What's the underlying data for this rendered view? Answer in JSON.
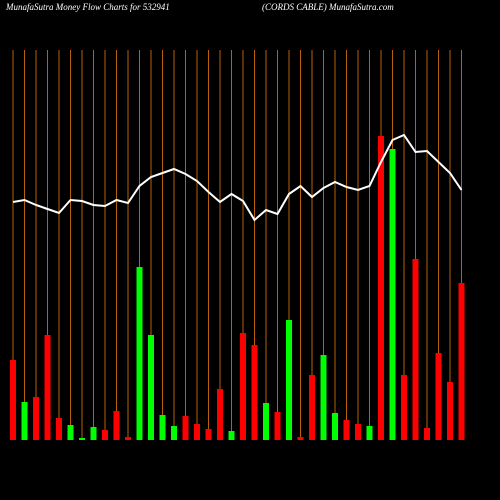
{
  "chart_data": {
    "type": "bar-line",
    "title": "MunafaSutra  Money Flow  Charts for 532941",
    "subtitle": "(CORDS CABLE) MunafaSutra.com",
    "categories": [
      null,
      null,
      null,
      null,
      null,
      null,
      null,
      null,
      null,
      null,
      null,
      null,
      null,
      null,
      null,
      null,
      null,
      null,
      null,
      null,
      null,
      null,
      null,
      null,
      null,
      null,
      null,
      null,
      null,
      null,
      null,
      null,
      null,
      null,
      null,
      null,
      null,
      null,
      null,
      null
    ],
    "values": [
      80,
      38,
      43,
      105,
      22,
      15,
      2,
      13,
      10,
      29,
      3,
      173,
      105,
      25,
      14,
      24,
      16,
      11,
      51,
      9,
      107,
      95,
      37,
      28,
      120,
      3,
      65,
      85,
      27,
      20,
      16,
      14,
      304,
      291,
      65,
      181,
      12,
      87,
      58,
      157
    ],
    "colors": [
      "#ff0000",
      "#00ff00",
      "#ff0000",
      "#ff0000",
      "#ff0000",
      "#00ff00",
      "#00ff00",
      "#00ff00",
      "#ff0000",
      "#ff0000",
      "#ff0000",
      "#00ff00",
      "#00ff00",
      "#00ff00",
      "#00ff00",
      "#ff0000",
      "#ff0000",
      "#ff0000",
      "#ff0000",
      "#00ff00",
      "#ff0000",
      "#ff0000",
      "#00ff00",
      "#ff0000",
      "#00ff00",
      "#ff0000",
      "#ff0000",
      "#00ff00",
      "#00ff00",
      "#ff0000",
      "#ff0000",
      "#00ff00",
      "#ff0000",
      "#00ff00",
      "#ff0000",
      "#ff0000",
      "#ff0000",
      "#ff0000",
      "#ff0000",
      "#ff0000"
    ],
    "line_values": [
      238,
      240,
      235,
      231,
      227,
      240,
      239,
      235,
      234,
      240,
      237,
      254,
      263,
      267,
      271,
      266,
      259,
      248,
      238,
      246,
      239,
      220,
      230,
      226,
      246,
      254,
      243,
      252,
      258,
      253,
      250,
      254,
      278,
      300,
      305,
      288,
      289,
      278,
      267,
      250
    ],
    "line_color": "#ffffff",
    "grid_color": "#b8600a",
    "ylim": [
      0,
      360
    ]
  }
}
